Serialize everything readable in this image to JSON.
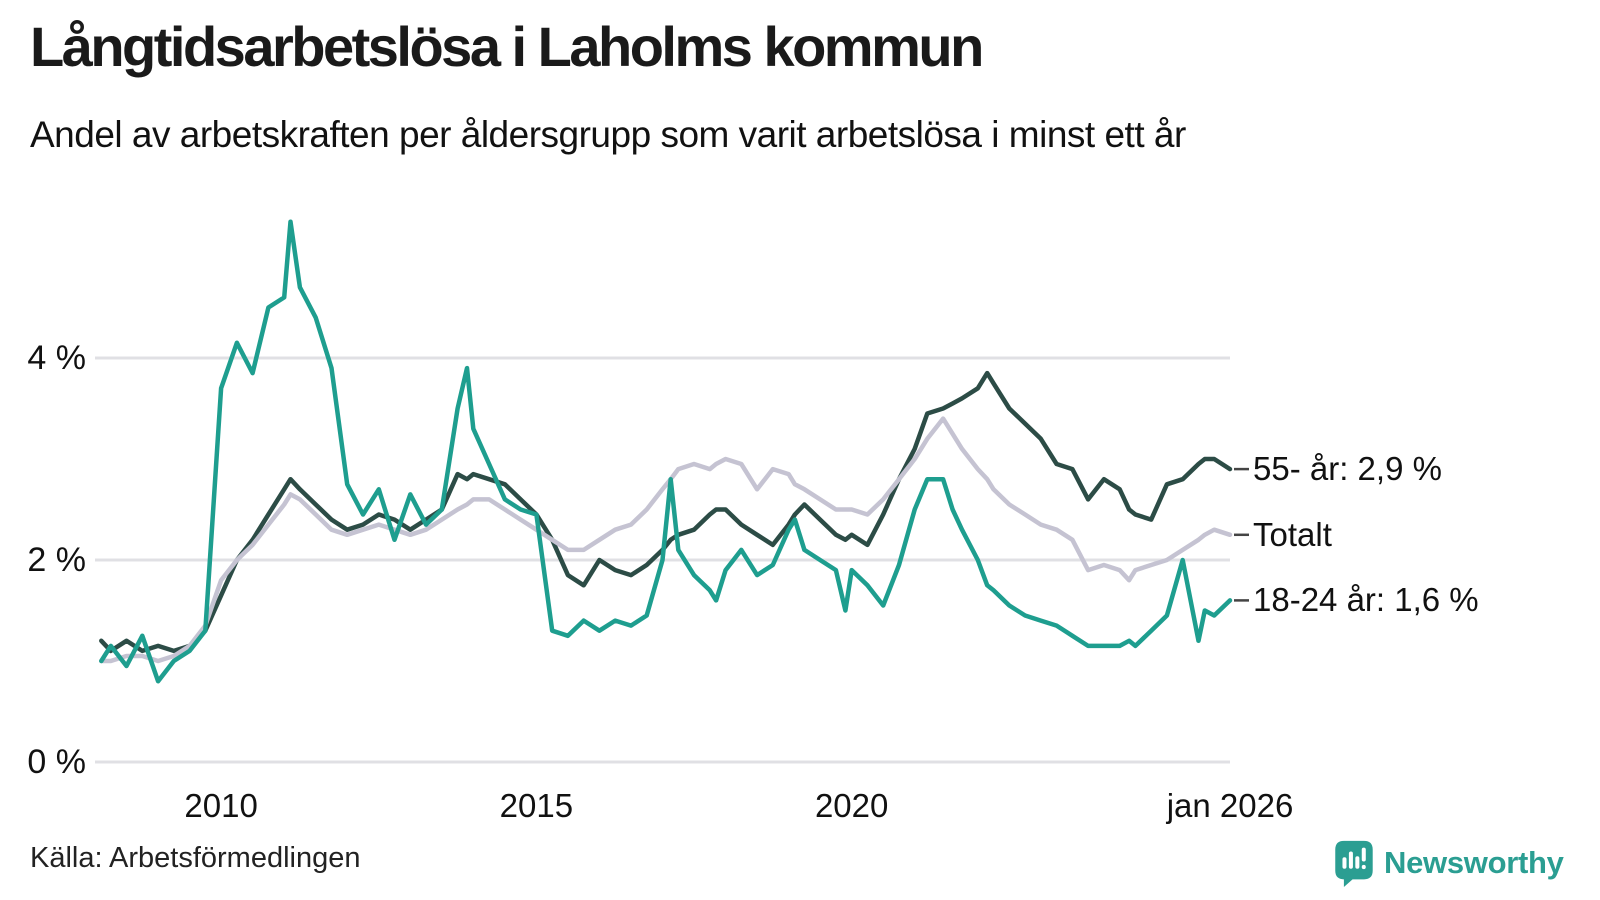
{
  "header": {
    "title": "Långtidsarbetslösa i Laholms kommun",
    "subtitle": "Andel av arbetskraften per åldersgrupp som varit arbetslösa i minst ett år"
  },
  "footer": {
    "source": "Källa: Arbetsförmedlingen",
    "brand": "Newsworthy",
    "brand_color": "#2b9e92"
  },
  "chart_data": {
    "type": "line",
    "unit": "%",
    "title": "Långtidsarbetslösa i Laholms kommun",
    "xlabel": "",
    "ylabel": "Andel av arbetskraften",
    "xlim": [
      2008,
      2026
    ],
    "ylim": [
      0,
      5.6
    ],
    "grid": "horizontal-only",
    "grid_color": "#e0e0e4",
    "legend_position": "right-end-labels",
    "y_ticks": [
      {
        "label": "0 %",
        "value": 0
      },
      {
        "label": "2 %",
        "value": 2
      },
      {
        "label": "4 %",
        "value": 4
      }
    ],
    "x_ticks": [
      {
        "label": "2010",
        "year": 2010
      },
      {
        "label": "2015",
        "year": 2015
      },
      {
        "label": "2020",
        "year": 2020
      },
      {
        "label": "jan 2026",
        "year": 2026
      }
    ],
    "x": [
      2008.1,
      2008.25,
      2008.5,
      2008.75,
      2009.0,
      2009.25,
      2009.5,
      2009.75,
      2010.0,
      2010.25,
      2010.5,
      2010.75,
      2011.0,
      2011.1,
      2011.25,
      2011.5,
      2011.75,
      2012.0,
      2012.25,
      2012.5,
      2012.75,
      2013.0,
      2013.25,
      2013.5,
      2013.75,
      2013.9,
      2014.0,
      2014.25,
      2014.5,
      2014.75,
      2015.0,
      2015.25,
      2015.5,
      2015.75,
      2016.0,
      2016.25,
      2016.5,
      2016.75,
      2017.0,
      2017.13,
      2017.25,
      2017.5,
      2017.75,
      2017.85,
      2018.0,
      2018.25,
      2018.5,
      2018.75,
      2019.0,
      2019.1,
      2019.25,
      2019.5,
      2019.75,
      2019.9,
      2020.0,
      2020.25,
      2020.5,
      2020.75,
      2021.0,
      2021.2,
      2021.45,
      2021.6,
      2021.75,
      2022.0,
      2022.15,
      2022.25,
      2022.5,
      2022.75,
      2023.0,
      2023.25,
      2023.5,
      2023.75,
      2024.0,
      2024.25,
      2024.4,
      2024.5,
      2024.75,
      2025.0,
      2025.25,
      2025.5,
      2025.6,
      2025.75,
      2026.0
    ],
    "series": [
      {
        "key": "55plus",
        "name": "55- år",
        "end_label": "55- år: 2,9 %",
        "end_value": 2.9,
        "color": "#2c4c46",
        "values": [
          1.2,
          1.1,
          1.2,
          1.1,
          1.15,
          1.1,
          1.15,
          1.3,
          1.65,
          2.0,
          2.2,
          2.45,
          2.7,
          2.8,
          2.7,
          2.55,
          2.4,
          2.3,
          2.35,
          2.45,
          2.4,
          2.3,
          2.4,
          2.5,
          2.85,
          2.8,
          2.85,
          2.8,
          2.75,
          2.6,
          2.45,
          2.2,
          1.85,
          1.75,
          2.0,
          1.9,
          1.85,
          1.95,
          2.1,
          2.2,
          2.25,
          2.3,
          2.45,
          2.5,
          2.5,
          2.35,
          2.25,
          2.15,
          2.35,
          2.45,
          2.55,
          2.4,
          2.25,
          2.2,
          2.25,
          2.15,
          2.45,
          2.8,
          3.1,
          3.45,
          3.5,
          3.55,
          3.6,
          3.7,
          3.85,
          3.75,
          3.5,
          3.35,
          3.2,
          2.95,
          2.9,
          2.6,
          2.8,
          2.7,
          2.5,
          2.45,
          2.4,
          2.75,
          2.8,
          2.95,
          3.0,
          3.0,
          2.9
        ]
      },
      {
        "key": "totalt",
        "name": "Totalt",
        "end_label": "Totalt",
        "end_value": 2.25,
        "color": "#c5c3d2",
        "values": [
          1.0,
          1.0,
          1.05,
          1.05,
          1.0,
          1.05,
          1.15,
          1.35,
          1.8,
          2.0,
          2.15,
          2.35,
          2.55,
          2.65,
          2.6,
          2.45,
          2.3,
          2.25,
          2.3,
          2.35,
          2.3,
          2.25,
          2.3,
          2.4,
          2.5,
          2.55,
          2.6,
          2.6,
          2.5,
          2.4,
          2.3,
          2.2,
          2.1,
          2.1,
          2.2,
          2.3,
          2.35,
          2.5,
          2.7,
          2.8,
          2.9,
          2.95,
          2.9,
          2.95,
          3.0,
          2.95,
          2.7,
          2.9,
          2.85,
          2.75,
          2.7,
          2.6,
          2.5,
          2.5,
          2.5,
          2.45,
          2.6,
          2.8,
          3.0,
          3.2,
          3.4,
          3.25,
          3.1,
          2.9,
          2.8,
          2.7,
          2.55,
          2.45,
          2.35,
          2.3,
          2.2,
          1.9,
          1.95,
          1.9,
          1.8,
          1.9,
          1.95,
          2.0,
          2.1,
          2.2,
          2.25,
          2.3,
          2.25
        ]
      },
      {
        "key": "18-24",
        "name": "18-24 år",
        "end_label": "18-24 år: 1,6 %",
        "end_value": 1.6,
        "color": "#1e9e8f",
        "values": [
          1.0,
          1.15,
          0.95,
          1.25,
          0.8,
          1.0,
          1.1,
          1.3,
          3.7,
          4.15,
          3.85,
          4.5,
          4.6,
          5.35,
          4.7,
          4.4,
          3.9,
          2.75,
          2.45,
          2.7,
          2.2,
          2.65,
          2.35,
          2.5,
          3.5,
          3.9,
          3.3,
          2.95,
          2.6,
          2.5,
          2.45,
          1.3,
          1.25,
          1.4,
          1.3,
          1.4,
          1.35,
          1.45,
          2.0,
          2.8,
          2.1,
          1.85,
          1.7,
          1.6,
          1.9,
          2.1,
          1.85,
          1.95,
          2.3,
          2.4,
          2.1,
          2.0,
          1.9,
          1.5,
          1.9,
          1.75,
          1.55,
          1.95,
          2.5,
          2.8,
          2.8,
          2.5,
          2.3,
          2.0,
          1.75,
          1.7,
          1.55,
          1.45,
          1.4,
          1.35,
          1.25,
          1.15,
          1.15,
          1.15,
          1.2,
          1.15,
          1.3,
          1.45,
          2.0,
          1.2,
          1.5,
          1.45,
          1.6
        ]
      }
    ]
  }
}
